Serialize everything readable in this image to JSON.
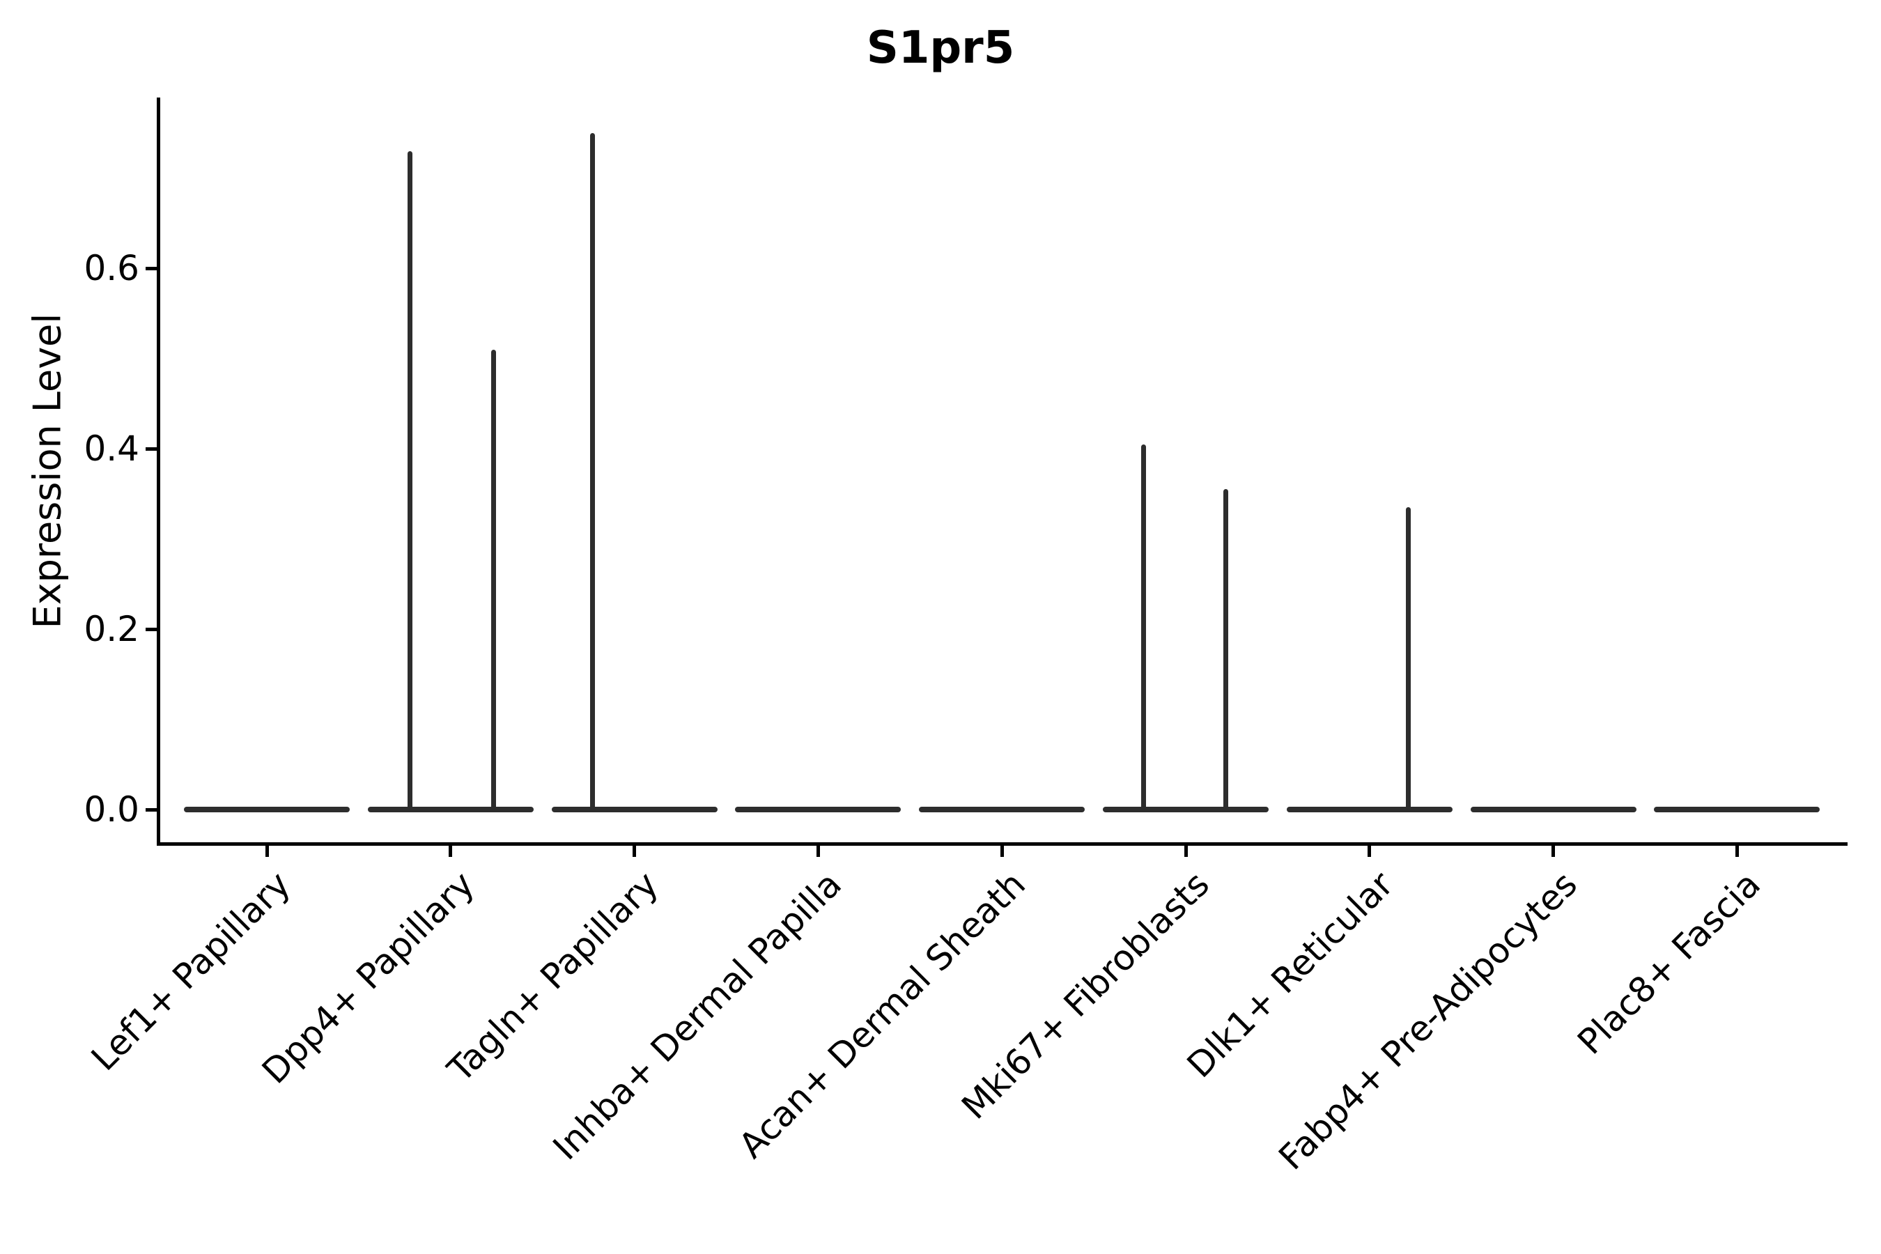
{
  "figure": {
    "title": "S1pr5",
    "ylabel": "Expression Level",
    "background_color": "#ffffff",
    "axis_color": "#000000",
    "violin_color": "#2d2d2d"
  },
  "chart_data": {
    "type": "violin",
    "title": "S1pr5",
    "xlabel": "",
    "ylabel": "Expression Level",
    "ylim": [
      -0.04,
      0.79
    ],
    "yticks": [
      0.0,
      0.2,
      0.4,
      0.6
    ],
    "ytick_labels": [
      "0.0",
      "0.2",
      "0.4",
      "0.6"
    ],
    "grid": false,
    "legend": "none",
    "categories": [
      "Lef1+ Papillary",
      "Dpp4+ Papillary",
      "Tagln+ Papillary",
      "Inhba+ Dermal Papilla",
      "Acan+ Dermal Sheath",
      "Mki67+ Fibroblasts",
      "Dlk1+ Reticular",
      "Fabp4+ Pre-Adipocytes",
      "Plac8+ Fascia"
    ],
    "violins": [
      {
        "category": "Lef1+ Papillary",
        "baseline_value": 0.0,
        "spikes": []
      },
      {
        "category": "Dpp4+ Papillary",
        "baseline_value": 0.0,
        "spikes": [
          {
            "dx": -58,
            "value": 0.73
          },
          {
            "dx": 62,
            "value": 0.51
          }
        ]
      },
      {
        "category": "Tagln+ Papillary",
        "baseline_value": 0.0,
        "spikes": [
          {
            "dx": -60,
            "value": 0.75
          }
        ]
      },
      {
        "category": "Inhba+ Dermal Papilla",
        "baseline_value": 0.0,
        "spikes": []
      },
      {
        "category": "Acan+ Dermal Sheath",
        "baseline_value": 0.0,
        "spikes": []
      },
      {
        "category": "Mki67+ Fibroblasts",
        "baseline_value": 0.0,
        "spikes": [
          {
            "dx": -61,
            "value": 0.405
          },
          {
            "dx": 57,
            "value": 0.355
          }
        ]
      },
      {
        "category": "Dlk1+ Reticular",
        "baseline_value": 0.0,
        "spikes": [
          {
            "dx": 56,
            "value": 0.335
          }
        ]
      },
      {
        "category": "Fabp4+ Pre-Adipocytes",
        "baseline_value": 0.0,
        "spikes": []
      },
      {
        "category": "Plac8+ Fascia",
        "baseline_value": 0.0,
        "spikes": []
      }
    ]
  }
}
